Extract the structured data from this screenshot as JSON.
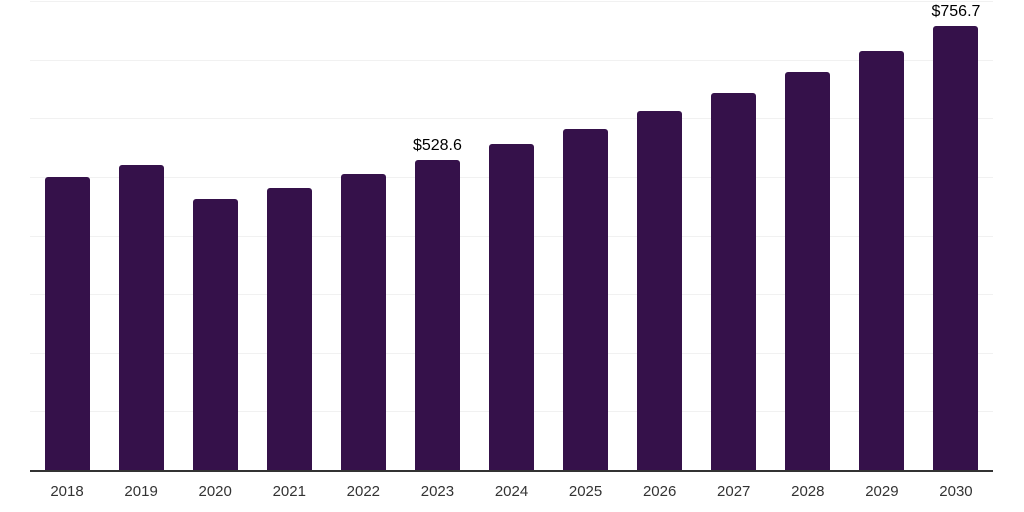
{
  "chart_data": {
    "type": "bar",
    "title": "",
    "xlabel": "",
    "ylabel": "",
    "categories": [
      "2018",
      "2019",
      "2020",
      "2021",
      "2022",
      "2023",
      "2024",
      "2025",
      "2026",
      "2027",
      "2028",
      "2029",
      "2030"
    ],
    "values": [
      500,
      520,
      462,
      481,
      505,
      528.6,
      556,
      582,
      612,
      643,
      679,
      715,
      756.7
    ],
    "data_labels": [
      {
        "category": "2023",
        "text": "$528.6"
      },
      {
        "category": "2030",
        "text": "$756.7"
      }
    ],
    "ylim": [
      0,
      800
    ],
    "gridline_step": 100,
    "grid": "horizontal-only",
    "y_axis_tick_labels": "none",
    "legend": "none"
  },
  "colors": {
    "bar": "#35114A",
    "axis_line": "#333333",
    "gridline": "#f1f1f1",
    "tick_label": "#333333",
    "value_label": "#000000",
    "background": "#ffffff"
  }
}
